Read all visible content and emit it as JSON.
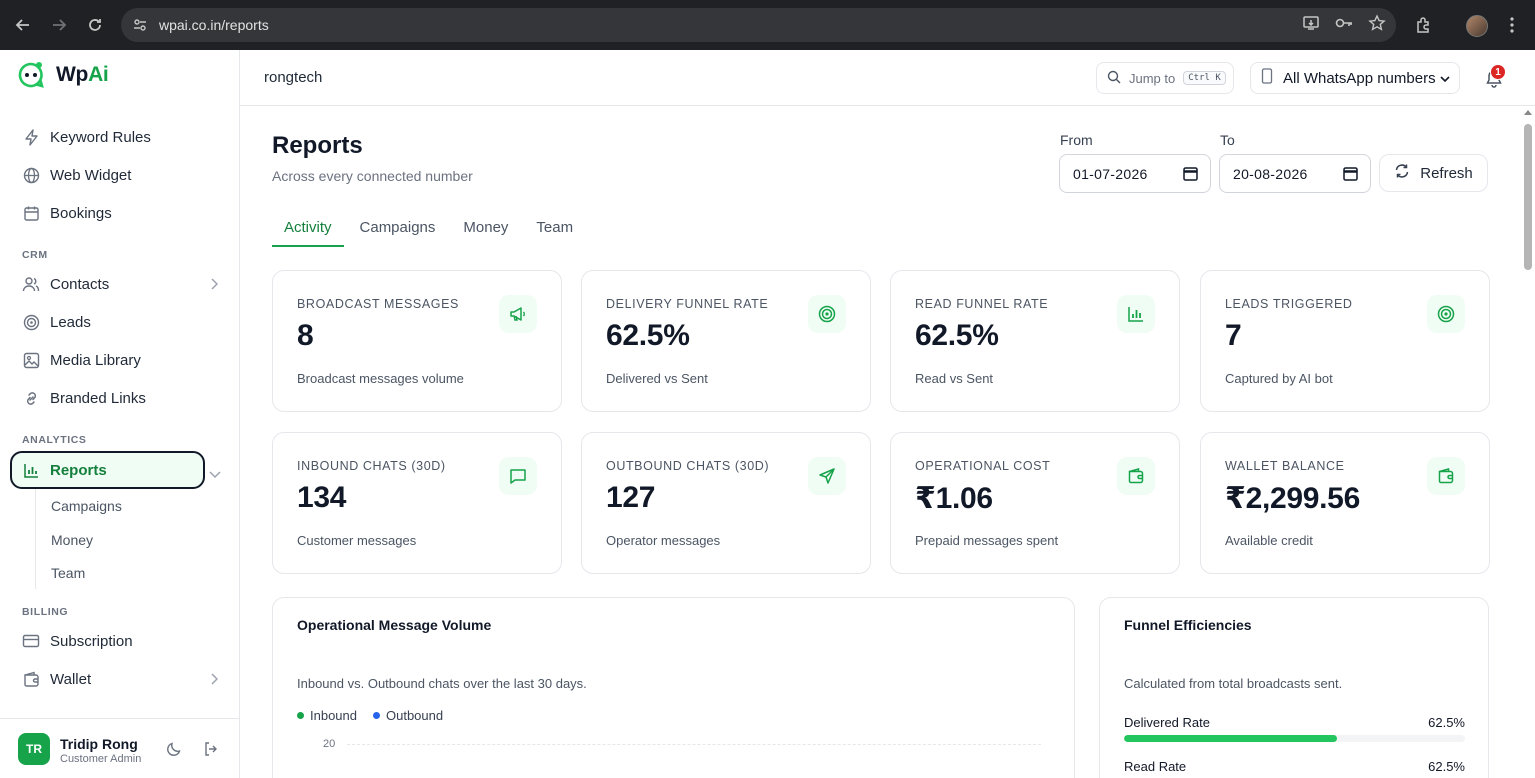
{
  "browser": {
    "url": "wpai.co.in/reports"
  },
  "brand": {
    "name_prefix": "Wp",
    "name_suffix": "Ai"
  },
  "sidebar": {
    "items_top": [
      {
        "label": "Keyword Rules",
        "icon": "zap-icon"
      },
      {
        "label": "Web Widget",
        "icon": "globe-icon"
      },
      {
        "label": "Bookings",
        "icon": "calendar-icon"
      }
    ],
    "crm_label": "CRM",
    "crm_items": [
      {
        "label": "Contacts",
        "icon": "users-icon"
      },
      {
        "label": "Leads",
        "icon": "target-icon"
      },
      {
        "label": "Media Library",
        "icon": "image-icon"
      },
      {
        "label": "Branded Links",
        "icon": "link-icon"
      }
    ],
    "analytics_label": "ANALYTICS",
    "reports_label": "Reports",
    "report_subitems": [
      "Campaigns",
      "Money",
      "Team"
    ],
    "billing_label": "BILLING",
    "billing_items": [
      {
        "label": "Subscription",
        "icon": "credit-card-icon"
      },
      {
        "label": "Wallet",
        "icon": "wallet-icon"
      }
    ]
  },
  "user": {
    "initials": "TR",
    "name": "Tridip Rong",
    "role": "Customer Admin"
  },
  "topbar": {
    "workspace": "rongtech",
    "jump_label": "Jump to",
    "jump_shortcut": "Ctrl K",
    "numbers_select": "All WhatsApp numbers",
    "notification_count": "1"
  },
  "page": {
    "title": "Reports",
    "subtitle": "Across every connected number",
    "from_label": "From",
    "to_label": "To",
    "from_value": "01-07-2026",
    "to_value": "20-08-2026",
    "refresh_label": "Refresh"
  },
  "tabs": [
    "Activity",
    "Campaigns",
    "Money",
    "Team"
  ],
  "cards": [
    {
      "label": "BROADCAST MESSAGES",
      "value": "8",
      "desc": "Broadcast messages volume",
      "icon": "megaphone-icon"
    },
    {
      "label": "DELIVERY FUNNEL RATE",
      "value": "62.5%",
      "desc": "Delivered vs Sent",
      "icon": "target-icon"
    },
    {
      "label": "READ FUNNEL RATE",
      "value": "62.5%",
      "desc": "Read vs Sent",
      "icon": "bar-chart-icon"
    },
    {
      "label": "LEADS TRIGGERED",
      "value": "7",
      "desc": "Captured by AI bot",
      "icon": "target-icon"
    },
    {
      "label": "INBOUND CHATS (30D)",
      "value": "134",
      "desc": "Customer messages",
      "icon": "message-icon"
    },
    {
      "label": "OUTBOUND CHATS (30D)",
      "value": "127",
      "desc": "Operator messages",
      "icon": "send-icon"
    },
    {
      "label": "OPERATIONAL COST",
      "value": "₹1.06",
      "desc": "Prepaid messages spent",
      "icon": "wallet-icon"
    },
    {
      "label": "WALLET BALANCE",
      "value": "₹2,299.56",
      "desc": "Available credit",
      "icon": "wallet-icon"
    }
  ],
  "volume_panel": {
    "title": "Operational Message Volume",
    "subtitle": "Inbound vs. Outbound chats over the last 30 days.",
    "legend_inbound": "Inbound",
    "legend_outbound": "Outbound",
    "inbound_color": "#16a34a",
    "outbound_color": "#2563eb",
    "y_tick_top": "20"
  },
  "funnel_panel": {
    "title": "Funnel Efficiencies",
    "subtitle": "Calculated from total broadcasts sent.",
    "rates": [
      {
        "label": "Delivered Rate",
        "value": "62.5%",
        "fraction": 0.625
      },
      {
        "label": "Read Rate",
        "value": "62.5%",
        "fraction": 0.625
      }
    ]
  }
}
